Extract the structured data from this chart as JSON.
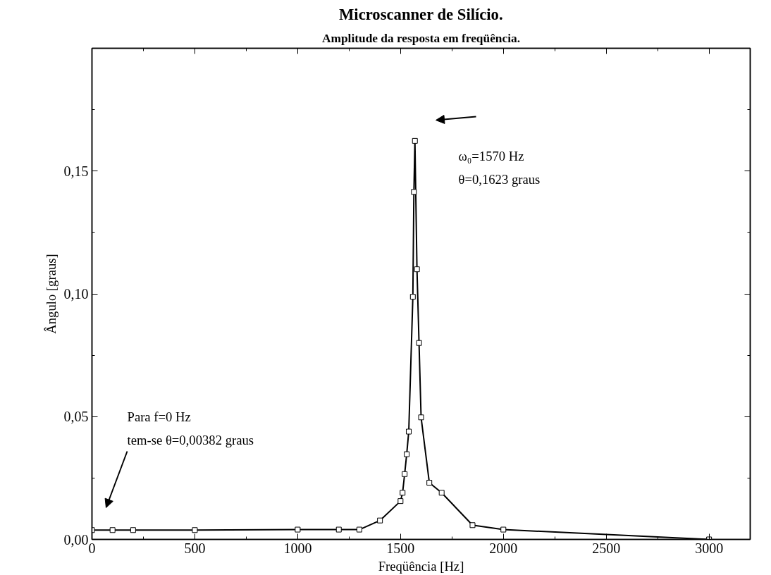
{
  "chart_data": {
    "type": "line",
    "title": "Microscanner de Silício.",
    "subtitle": "Amplitude da resposta em freqüência.",
    "xlabel": "Freqüência [Hz]",
    "ylabel": "Ângulo [graus]",
    "x": [
      0,
      100,
      200,
      500,
      1000,
      1200,
      1300,
      1400,
      1500,
      1510,
      1520,
      1530,
      1540,
      1560,
      1565,
      1570,
      1580,
      1590,
      1600,
      1640,
      1700,
      1850,
      2000,
      3000
    ],
    "series": [
      {
        "color": "#000000",
        "values": [
          0.0038,
          0.0038,
          0.0038,
          0.0038,
          0.004,
          0.004,
          0.004,
          0.0077,
          0.0156,
          0.019,
          0.0266,
          0.0347,
          0.0439,
          0.0988,
          0.1415,
          0.1623,
          0.11,
          0.08,
          0.0497,
          0.0231,
          0.019,
          0.0058,
          0.004,
          0.0
        ]
      }
    ],
    "xlim": [
      0,
      3200
    ],
    "ylim": [
      0,
      0.2
    ],
    "xticks": [
      0,
      500,
      1000,
      1500,
      2000,
      2500,
      3000
    ],
    "yticks": [
      {
        "value": 0,
        "label": "0,00"
      },
      {
        "value": 0.05,
        "label": "0,05"
      },
      {
        "value": 0.1,
        "label": "0,10"
      },
      {
        "value": 0.15,
        "label": "0,15"
      }
    ],
    "marker": "square",
    "line_style": "solid",
    "grid": false,
    "annotations": [
      "ω₀=1570 Hz\nθ=0,1623 graus",
      "Para f=0 Hz\ntem-se θ=0,00382 graus"
    ]
  }
}
